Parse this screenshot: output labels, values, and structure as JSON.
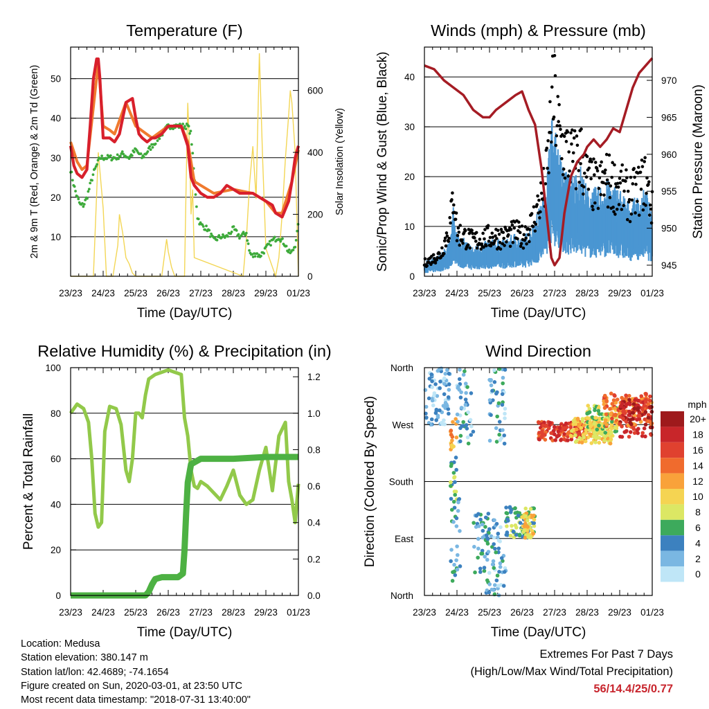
{
  "chart_data": [
    {
      "type": "line",
      "title": "Temperature (F)",
      "xlabel": "Time (Day/UTC)",
      "ylabel": "2m & 9m T (Red, Orange) & 2m Td (Green)",
      "y2label": "Solar Insolation (Yellow)",
      "categories": [
        "23/23",
        "24/23",
        "25/23",
        "26/23",
        "27/23",
        "28/23",
        "29/23",
        "01/23"
      ],
      "ylim": [
        0,
        58
      ],
      "yticks": [
        10,
        20,
        30,
        40,
        50
      ],
      "y2lim": [
        0,
        740
      ],
      "y2ticks": [
        0,
        200,
        400,
        600
      ],
      "grid": true,
      "series": [
        {
          "name": "2m T",
          "color": "#d8202c",
          "axis": "left",
          "x": [
            0,
            0.1,
            0.2,
            0.35,
            0.5,
            0.6,
            0.7,
            0.8,
            0.85,
            0.9,
            1.0,
            1.1,
            1.2,
            1.35,
            1.5,
            1.7,
            1.9,
            2.0,
            2.1,
            2.2,
            2.35,
            2.5,
            2.6,
            2.8,
            3.0,
            3.2,
            3.4,
            3.6,
            3.7,
            3.8,
            4.0,
            4.2,
            4.4,
            4.6,
            4.8,
            5.0,
            5.2,
            5.4,
            5.6,
            5.8,
            6.0,
            6.2,
            6.3,
            6.5,
            6.7,
            6.8,
            6.9,
            7.0
          ],
          "y": [
            33,
            28,
            26,
            25,
            27,
            38,
            50,
            55,
            55,
            50,
            35,
            35,
            35,
            34,
            36,
            44,
            45,
            40,
            36,
            35,
            34,
            35,
            35,
            36,
            38,
            38,
            38,
            33,
            25,
            23,
            21,
            20,
            20,
            21,
            23,
            22,
            21,
            21,
            21,
            20,
            19,
            18,
            16,
            15,
            19,
            24,
            30,
            33
          ]
        },
        {
          "name": "9m T",
          "color": "#f07a2e",
          "axis": "left",
          "x": [
            0,
            0.2,
            0.35,
            0.5,
            0.85,
            1.0,
            1.2,
            1.35,
            1.7,
            2.0,
            2.5,
            3.0,
            3.4,
            3.6,
            3.8,
            4.4,
            5.0,
            5.6,
            6.0,
            6.3,
            6.5,
            6.8,
            7.0
          ],
          "y": [
            34,
            29,
            27,
            28,
            54,
            38,
            37,
            36,
            44,
            38,
            35,
            38,
            38,
            34,
            24,
            21,
            22,
            21,
            19,
            16,
            16,
            24,
            32
          ]
        },
        {
          "name": "2m Td",
          "color": "#3daa3a",
          "axis": "left",
          "x": [
            0,
            0.1,
            0.2,
            0.3,
            0.4,
            0.5,
            0.7,
            0.9,
            1.0,
            1.2,
            1.4,
            1.6,
            1.8,
            2.0,
            2.2,
            2.5,
            2.8,
            3.0,
            3.3,
            3.6,
            3.7,
            3.8,
            3.9,
            4.0,
            4.2,
            4.4,
            4.6,
            4.8,
            5.0,
            5.2,
            5.4,
            5.5,
            5.6,
            5.7,
            5.8,
            5.9,
            6.0,
            6.2,
            6.4,
            6.6,
            6.7,
            6.8,
            6.9,
            7.0
          ],
          "y": [
            27,
            23,
            20,
            18,
            18,
            20,
            26,
            30,
            30,
            30,
            30,
            31,
            30,
            32,
            30,
            33,
            36,
            38,
            38,
            38,
            36,
            25,
            15,
            13,
            12,
            9,
            10,
            10,
            12,
            10,
            11,
            6,
            5,
            6,
            5,
            6,
            7,
            9,
            10,
            8,
            6,
            6,
            8,
            13
          ]
        },
        {
          "name": "Solar Insolation",
          "color": "#f3d655",
          "axis": "right",
          "x": [
            0,
            0.7,
            0.85,
            1.0,
            1.1,
            1.3,
            1.45,
            1.5,
            1.6,
            1.7,
            1.8,
            1.9,
            2.0,
            2.3,
            2.5,
            2.8,
            2.85,
            2.95,
            3.0,
            3.1,
            3.2,
            3.5,
            3.55,
            3.6,
            3.65,
            3.7,
            3.75,
            3.8,
            5.3,
            5.4,
            5.5,
            5.6,
            5.7,
            5.8,
            5.9,
            6.0,
            6.3,
            6.4,
            6.5,
            6.6,
            6.7,
            6.75,
            6.8,
            6.9,
            7.0
          ],
          "y": [
            0,
            0,
            400,
            220,
            0,
            0,
            100,
            200,
            140,
            60,
            40,
            10,
            0,
            0,
            0,
            0,
            40,
            120,
            80,
            30,
            0,
            0,
            300,
            560,
            420,
            200,
            280,
            60,
            0,
            120,
            300,
            420,
            250,
            720,
            380,
            90,
            0,
            60,
            200,
            380,
            520,
            600,
            560,
            400,
            0
          ]
        }
      ]
    },
    {
      "type": "scatter",
      "title": "Winds (mph) & Pressure (mb)",
      "xlabel": "Time (Day/UTC)",
      "ylabel": "Sonic/Prop Wind & Gust (Blue, Black)",
      "y2label": "Station Pressure (Maroon)",
      "categories": [
        "23/23",
        "24/23",
        "25/23",
        "26/23",
        "27/23",
        "28/23",
        "29/23",
        "01/23"
      ],
      "ylim": [
        0,
        46
      ],
      "yticks": [
        0,
        10,
        20,
        30,
        40
      ],
      "y2lim": [
        943.5,
        974.5
      ],
      "y2ticks": [
        945,
        950,
        955,
        960,
        965,
        970
      ],
      "grid": true,
      "series": [
        {
          "name": "Wind",
          "color": "#4a96d2",
          "axis": "left",
          "style": "band",
          "x": [
            0,
            0.5,
            0.8,
            0.9,
            1.0,
            1.5,
            2.0,
            2.5,
            2.8,
            3.0,
            3.3,
            3.6,
            3.7,
            3.8,
            3.9,
            4.0,
            4.1,
            4.2,
            4.4,
            4.6,
            4.8,
            5.0,
            5.3,
            5.6,
            6.0,
            6.3,
            6.6,
            6.8,
            7.0
          ],
          "y": [
            2,
            3,
            5,
            10,
            6,
            4,
            5,
            5,
            6,
            5,
            7,
            10,
            12,
            16,
            22,
            20,
            18,
            16,
            14,
            14,
            15,
            12,
            12,
            13,
            12,
            10,
            11,
            12,
            8
          ]
        },
        {
          "name": "Gust",
          "color": "#000000",
          "axis": "left",
          "style": "dots",
          "x": [
            0,
            0.5,
            0.8,
            0.9,
            1.0,
            1.5,
            2.0,
            2.5,
            2.8,
            3.0,
            3.3,
            3.6,
            3.7,
            3.8,
            3.9,
            4.0,
            4.1,
            4.2,
            4.4,
            4.6,
            4.8,
            5.0,
            5.3,
            5.6,
            6.0,
            6.3,
            6.6,
            6.8,
            7.0
          ],
          "y": [
            3,
            5,
            12,
            20,
            10,
            8,
            9,
            9,
            10,
            9,
            12,
            18,
            20,
            26,
            38,
            40,
            34,
            30,
            28,
            26,
            28,
            22,
            20,
            22,
            20,
            18,
            20,
            22,
            15
          ]
        },
        {
          "name": "Pressure",
          "color": "#a51c24",
          "axis": "right",
          "x": [
            0,
            0.3,
            0.6,
            0.9,
            1.2,
            1.5,
            1.8,
            2.0,
            2.2,
            2.5,
            2.8,
            3.0,
            3.2,
            3.4,
            3.6,
            3.8,
            3.9,
            4.0,
            4.15,
            4.3,
            4.5,
            4.7,
            4.9,
            5.0,
            5.2,
            5.4,
            5.6,
            5.8,
            6.0,
            6.2,
            6.4,
            6.6,
            6.8,
            7.0
          ],
          "y": [
            972,
            971.5,
            970,
            969,
            968,
            966,
            965,
            965,
            966,
            967,
            968,
            968.5,
            966,
            964,
            958,
            950,
            946,
            945,
            946,
            952,
            957,
            959,
            960,
            961,
            962,
            961,
            962,
            963.5,
            963,
            966,
            969,
            971,
            972,
            973
          ]
        }
      ]
    },
    {
      "type": "line",
      "title": "Relative Humidity (%) & Precipitation (in)",
      "xlabel": "Time (Day/UTC)",
      "ylabel": "Percent & Total Rainfall",
      "categories": [
        "23/23",
        "24/23",
        "25/23",
        "26/23",
        "27/23",
        "28/23",
        "29/23",
        "01/23"
      ],
      "ylim": [
        0,
        100
      ],
      "yticks": [
        0,
        20,
        40,
        60,
        80,
        100
      ],
      "y2lim": [
        0,
        1.25
      ],
      "y2ticks": [
        0.0,
        0.2,
        0.4,
        0.6,
        0.8,
        1.0,
        1.2
      ],
      "grid": true,
      "series": [
        {
          "name": "Relative Humidity",
          "color": "#92c94a",
          "axis": "left",
          "x": [
            0,
            0.2,
            0.4,
            0.55,
            0.65,
            0.75,
            0.85,
            0.95,
            1.05,
            1.2,
            1.4,
            1.55,
            1.7,
            1.8,
            1.9,
            2.0,
            2.1,
            2.2,
            2.3,
            2.4,
            2.6,
            2.8,
            3.0,
            3.2,
            3.4,
            3.5,
            3.6,
            3.7,
            3.8,
            3.9,
            4.0,
            4.2,
            4.4,
            4.6,
            4.8,
            5.0,
            5.2,
            5.4,
            5.6,
            5.8,
            6.0,
            6.2,
            6.4,
            6.6,
            6.7,
            6.8,
            6.9,
            7.0
          ],
          "y": [
            80,
            84,
            82,
            76,
            60,
            36,
            30,
            32,
            72,
            83,
            82,
            75,
            55,
            50,
            60,
            80,
            80,
            78,
            88,
            95,
            97,
            98,
            99,
            98,
            97,
            78,
            70,
            55,
            48,
            47,
            50,
            48,
            45,
            42,
            48,
            55,
            44,
            40,
            42,
            55,
            65,
            46,
            70,
            76,
            50,
            42,
            32,
            49
          ]
        },
        {
          "name": "Total Precipitation",
          "color": "#4db143",
          "axis": "right",
          "x": [
            0,
            1.5,
            2.0,
            2.3,
            2.4,
            2.5,
            2.6,
            2.8,
            3.0,
            3.3,
            3.45,
            3.5,
            3.55,
            3.6,
            3.7,
            4.0,
            5.0,
            6.0,
            7.0
          ],
          "y": [
            0,
            0,
            0,
            0,
            0.02,
            0.06,
            0.09,
            0.1,
            0.1,
            0.1,
            0.12,
            0.25,
            0.45,
            0.62,
            0.72,
            0.75,
            0.75,
            0.76,
            0.76
          ]
        }
      ]
    },
    {
      "type": "scatter",
      "title": "Wind Direction",
      "xlabel": "Time (Day/UTC)",
      "ylabel": "Direction (Colored By Speed)",
      "categories": [
        "23/23",
        "24/23",
        "25/23",
        "26/23",
        "27/23",
        "28/23",
        "29/23",
        "01/23"
      ],
      "yticks_labels": [
        "North",
        "East",
        "South",
        "West",
        "North"
      ],
      "ylim": [
        0,
        360
      ],
      "grid": true,
      "legend": {
        "title": "mph",
        "labels": [
          "20+",
          "18",
          "16",
          "14",
          "12",
          "10",
          "8",
          "6",
          "4",
          "2",
          "0"
        ],
        "colors": [
          "#9e1a1c",
          "#c8262a",
          "#e0412f",
          "#f06b2d",
          "#f9a23a",
          "#f5d452",
          "#dce764",
          "#3daa5c",
          "#3c81bf",
          "#7ab7e2",
          "#bfe6f7"
        ]
      },
      "clusters": [
        {
          "x": [
            0.0,
            0.8
          ],
          "y": [
            270,
            360
          ],
          "speed": 2
        },
        {
          "x": [
            0.8,
            1.0
          ],
          "y": [
            230,
            280
          ],
          "speed": 12
        },
        {
          "x": [
            0.8,
            1.0
          ],
          "y": [
            150,
            220
          ],
          "speed": 6
        },
        {
          "x": [
            0.8,
            1.1
          ],
          "y": [
            20,
            160
          ],
          "speed": 4
        },
        {
          "x": [
            1.0,
            1.5
          ],
          "y": [
            230,
            360
          ],
          "speed": 3
        },
        {
          "x": [
            1.5,
            2.0
          ],
          "y": [
            20,
            130
          ],
          "speed": 4
        },
        {
          "x": [
            1.9,
            2.5
          ],
          "y": [
            0,
            120
          ],
          "speed": 3
        },
        {
          "x": [
            2.0,
            2.5
          ],
          "y": [
            240,
            360
          ],
          "speed": 3
        },
        {
          "x": [
            2.5,
            3.4
          ],
          "y": [
            90,
            140
          ],
          "speed": 6
        },
        {
          "x": [
            3.0,
            3.4
          ],
          "y": [
            90,
            130
          ],
          "speed": 10
        },
        {
          "x": [
            3.5,
            5.0
          ],
          "y": [
            245,
            275
          ],
          "speed": 16
        },
        {
          "x": [
            4.5,
            5.8
          ],
          "y": [
            240,
            280
          ],
          "speed": 10
        },
        {
          "x": [
            5.0,
            6.0
          ],
          "y": [
            255,
            300
          ],
          "speed": 8
        },
        {
          "x": [
            5.5,
            7.0
          ],
          "y": [
            265,
            320
          ],
          "speed": 14
        },
        {
          "x": [
            6.0,
            7.0
          ],
          "y": [
            250,
            310
          ],
          "speed": 18
        }
      ]
    }
  ],
  "footer": {
    "location": "Location: Medusa",
    "elevation": "Station elevation: 380.147 m",
    "latlon": "Station lat/lon: 42.4689; -74.1654",
    "created": "Figure created on Sun, 2020-03-01, at 23:50 UTC",
    "recent": "Most recent data timestamp: \"2018-07-31 13:40:00\""
  },
  "extremes": {
    "heading": "Extremes For Past 7 Days",
    "subheading": "(High/Low/Max Wind/Total Precipitation)",
    "values": "56/14.4/25/0.77",
    "color": "#c8262e"
  }
}
